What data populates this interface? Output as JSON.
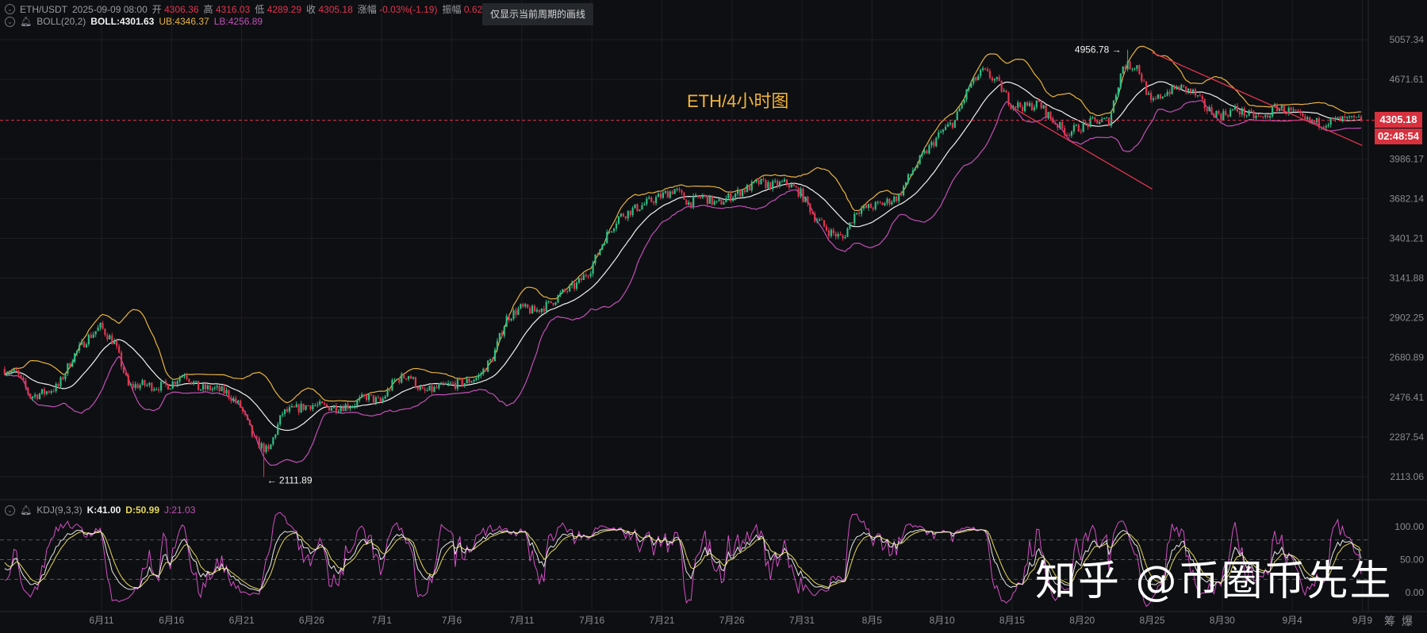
{
  "header": {
    "symbol": "ETH/USDT",
    "datetime": "2025-09-09 08:00",
    "open_label": "开",
    "open": "4306.36",
    "high_label": "高",
    "high": "4316.03",
    "low_label": "低",
    "low": "4289.29",
    "close_label": "收",
    "close": "4305.18",
    "change_label": "涨幅",
    "change": "-0.03%(-1.19)",
    "amplitude_label": "振幅",
    "amplitude": "0.62%"
  },
  "boll": {
    "name": "BOLL(20,2)",
    "mid": "BOLL:4301.63",
    "ub": "UB:4346.37",
    "lb": "LB:4256.89"
  },
  "kdj": {
    "name": "KDJ(9,3,3)",
    "k": "K:41.00",
    "d": "D:50.99",
    "j": "J:21.03"
  },
  "tooltip": "仅显示当前周期的画线",
  "chart_title": "ETH/4小时图",
  "price_tag": "4305.18",
  "countdown": "02:48:54",
  "watermark": "知乎 @币圈币先生",
  "footer_buttons": [
    "筹",
    "爆"
  ],
  "colors": {
    "up": "#2ebd85",
    "down": "#e0354f",
    "boll_mid": "#f2f2f2",
    "boll_ub": "#e8b341",
    "boll_lb": "#c250b8",
    "k": "#e8e8e8",
    "d": "#e6d85a",
    "j": "#d34fc5",
    "trendline": "#e0354f",
    "last_price_line": "#e0354f"
  },
  "chart_data": [
    {
      "type": "candlestick",
      "interval": "4h",
      "y_scale": "log",
      "ylim": [
        2113.06,
        5057.34
      ],
      "y_ticks": [
        "5057.34",
        "4671.61",
        "3986.17",
        "3682.14",
        "3401.21",
        "3141.88",
        "2902.25",
        "2680.89",
        "2476.41",
        "2287.54",
        "2113.06"
      ],
      "x_ticks": [
        "6月11",
        "6月16",
        "6月21",
        "6月26",
        "7月1",
        "7月6",
        "7月11",
        "7月16",
        "7月21",
        "7月26",
        "7月31",
        "8月5",
        "8月10",
        "8月15",
        "8月20",
        "8月25",
        "8月30",
        "9月4",
        "9月9"
      ],
      "x_tick_dates": [
        "2025-06-11",
        "2025-06-16",
        "2025-06-21",
        "2025-06-26",
        "2025-07-01",
        "2025-07-06",
        "2025-07-11",
        "2025-07-16",
        "2025-07-21",
        "2025-07-26",
        "2025-07-31",
        "2025-08-05",
        "2025-08-10",
        "2025-08-15",
        "2025-08-20",
        "2025-08-25",
        "2025-08-30",
        "2025-09-04",
        "2025-09-09"
      ],
      "start_date": "2025-06-04",
      "daily_close": [
        2620,
        2600,
        2480,
        2500,
        2530,
        2680,
        2780,
        2850,
        2760,
        2530,
        2540,
        2530,
        2540,
        2600,
        2520,
        2520,
        2500,
        2430,
        2270,
        2220,
        2400,
        2420,
        2440,
        2430,
        2430,
        2440,
        2480,
        2450,
        2560,
        2590,
        2500,
        2520,
        2540,
        2550,
        2580,
        2680,
        2900,
        2960,
        2940,
        2980,
        3050,
        3100,
        3200,
        3400,
        3550,
        3600,
        3650,
        3700,
        3750,
        3650,
        3700,
        3640,
        3700,
        3750,
        3800,
        3780,
        3800,
        3720,
        3550,
        3450,
        3400,
        3600,
        3620,
        3650,
        3700,
        3900,
        4050,
        4200,
        4300,
        4600,
        4750,
        4650,
        4450,
        4420,
        4450,
        4300,
        4200,
        4250,
        4300,
        4300,
        4800,
        4800,
        4450,
        4550,
        4600,
        4550,
        4400,
        4350,
        4400,
        4350,
        4320,
        4420,
        4380,
        4300,
        4280,
        4300,
        4310,
        4305.18
      ],
      "annotations": {
        "max_high": "4956.78",
        "min_low": "2111.89"
      },
      "last_price": 4305.18,
      "trendlines": [
        {
          "from": [
            "2025-08-15",
            4420
          ],
          "to": [
            "2025-08-25",
            3753
          ]
        },
        {
          "from": [
            "2025-08-25",
            4930
          ],
          "to": [
            "2025-09-09",
            4094
          ]
        }
      ],
      "indicator": "BOLL(20,2)"
    },
    {
      "type": "line",
      "indicator": "KDJ(9,3,3)",
      "ylim": [
        0,
        100
      ],
      "y_ticks": [
        "100.00",
        "50.00",
        "0.00"
      ],
      "reference_lines": [
        80,
        50,
        20
      ],
      "series_names": [
        "K",
        "D",
        "J"
      ]
    }
  ]
}
